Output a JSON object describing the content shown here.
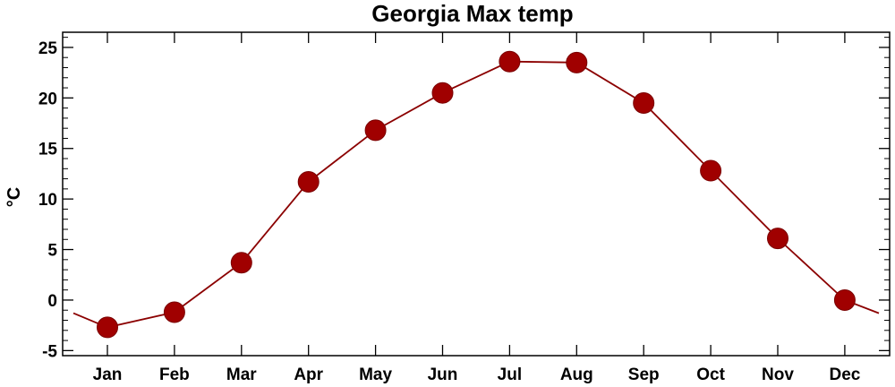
{
  "chart_data": {
    "type": "line",
    "title": "Georgia Max temp",
    "xlabel": "",
    "ylabel": "°C",
    "categories": [
      "Jan",
      "Feb",
      "Mar",
      "Apr",
      "May",
      "Jun",
      "Jul",
      "Aug",
      "Sep",
      "Oct",
      "Nov",
      "Dec"
    ],
    "series": [
      {
        "values": [
          -2.7,
          -1.2,
          3.7,
          11.7,
          16.8,
          20.5,
          23.6,
          23.5,
          19.5,
          12.8,
          6.1,
          0.0
        ]
      }
    ],
    "edge_extension": {
      "left": -1.3,
      "right": -1.3
    },
    "ylim": [
      -5.5,
      26.5
    ],
    "yticks": [
      -5,
      0,
      5,
      10,
      15,
      20,
      25
    ],
    "ytick_labels": [
      "-5",
      "0",
      "5",
      "10",
      "15",
      "20",
      "25"
    ],
    "grid": false,
    "colors": {
      "line": "#8b0000",
      "marker": "#a00000",
      "axes": "#000000"
    }
  }
}
